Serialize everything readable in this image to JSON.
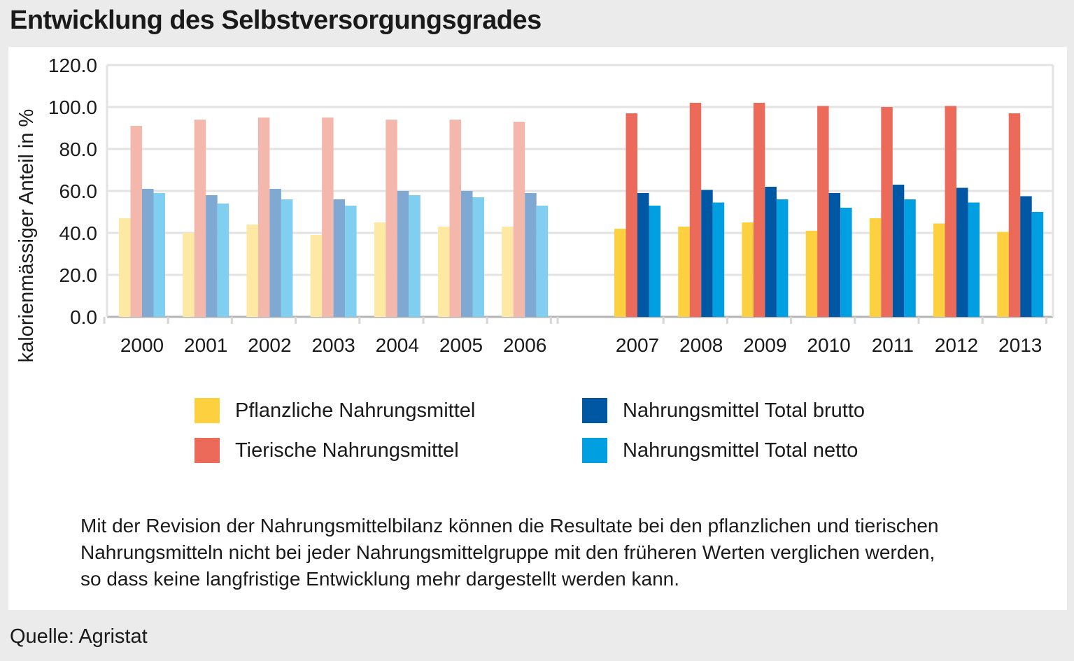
{
  "title": "Entwicklung des Selbstversorgungsgrades",
  "chart_data": {
    "type": "bar",
    "title": "Entwicklung des Selbstversorgungsgrades",
    "xlabel": "",
    "ylabel": "kalorienmässiger Anteil in %",
    "ylim": [
      0,
      120
    ],
    "yticks": [
      "0.0",
      "20.0",
      "40.0",
      "60.0",
      "80.0",
      "100.0",
      "120.0"
    ],
    "grid": true,
    "legend_position": "bottom",
    "categories": [
      "2000",
      "2001",
      "2002",
      "2003",
      "2004",
      "2005",
      "2006",
      "2007",
      "2008",
      "2009",
      "2010",
      "2011",
      "2012",
      "2013"
    ],
    "period_note": "2000-2006 shown in lighter shades (before revision); 2007-2013 in full colours",
    "series": [
      {
        "name": "Pflanzliche Nahrungsmittel",
        "color": "#fdd03f",
        "color_light": "#fde8a4",
        "values": [
          47,
          40,
          44,
          39,
          45,
          43,
          43,
          42,
          43,
          45,
          41,
          47,
          44.5,
          40.5
        ]
      },
      {
        "name": "Tierische Nahrungsmittel",
        "color": "#ec6a5a",
        "color_light": "#f4b7ab",
        "values": [
          91,
          94,
          95,
          95,
          94,
          94,
          93,
          97,
          102,
          102,
          100.5,
          100,
          100.5,
          97
        ]
      },
      {
        "name": "Nahrungsmittel Total brutto",
        "color": "#0057a3",
        "color_light": "#7fa8d2",
        "values": [
          61,
          58,
          61,
          56,
          60,
          60,
          59,
          59,
          60.5,
          62,
          59,
          63,
          61.5,
          57.5
        ]
      },
      {
        "name": "Nahrungsmittel Total netto",
        "color": "#009fe2",
        "color_light": "#80cff1",
        "values": [
          59,
          54,
          56,
          53,
          58,
          57,
          53,
          53,
          54.5,
          56,
          52,
          56,
          54.5,
          50
        ]
      }
    ]
  },
  "note": {
    "line1": "Mit der Revision der Nahrungsmittelbilanz  können die Resultate bei den pflanzlichen und tierischen",
    "line2": "Nahrungsmitteln nicht bei jeder Nahrungsmittelgruppe mit den früheren Werten verglichen werden,",
    "line3": "so dass keine langfristige Entwicklung  mehr dargestellt werden kann."
  },
  "source": "Quelle: Agristat"
}
